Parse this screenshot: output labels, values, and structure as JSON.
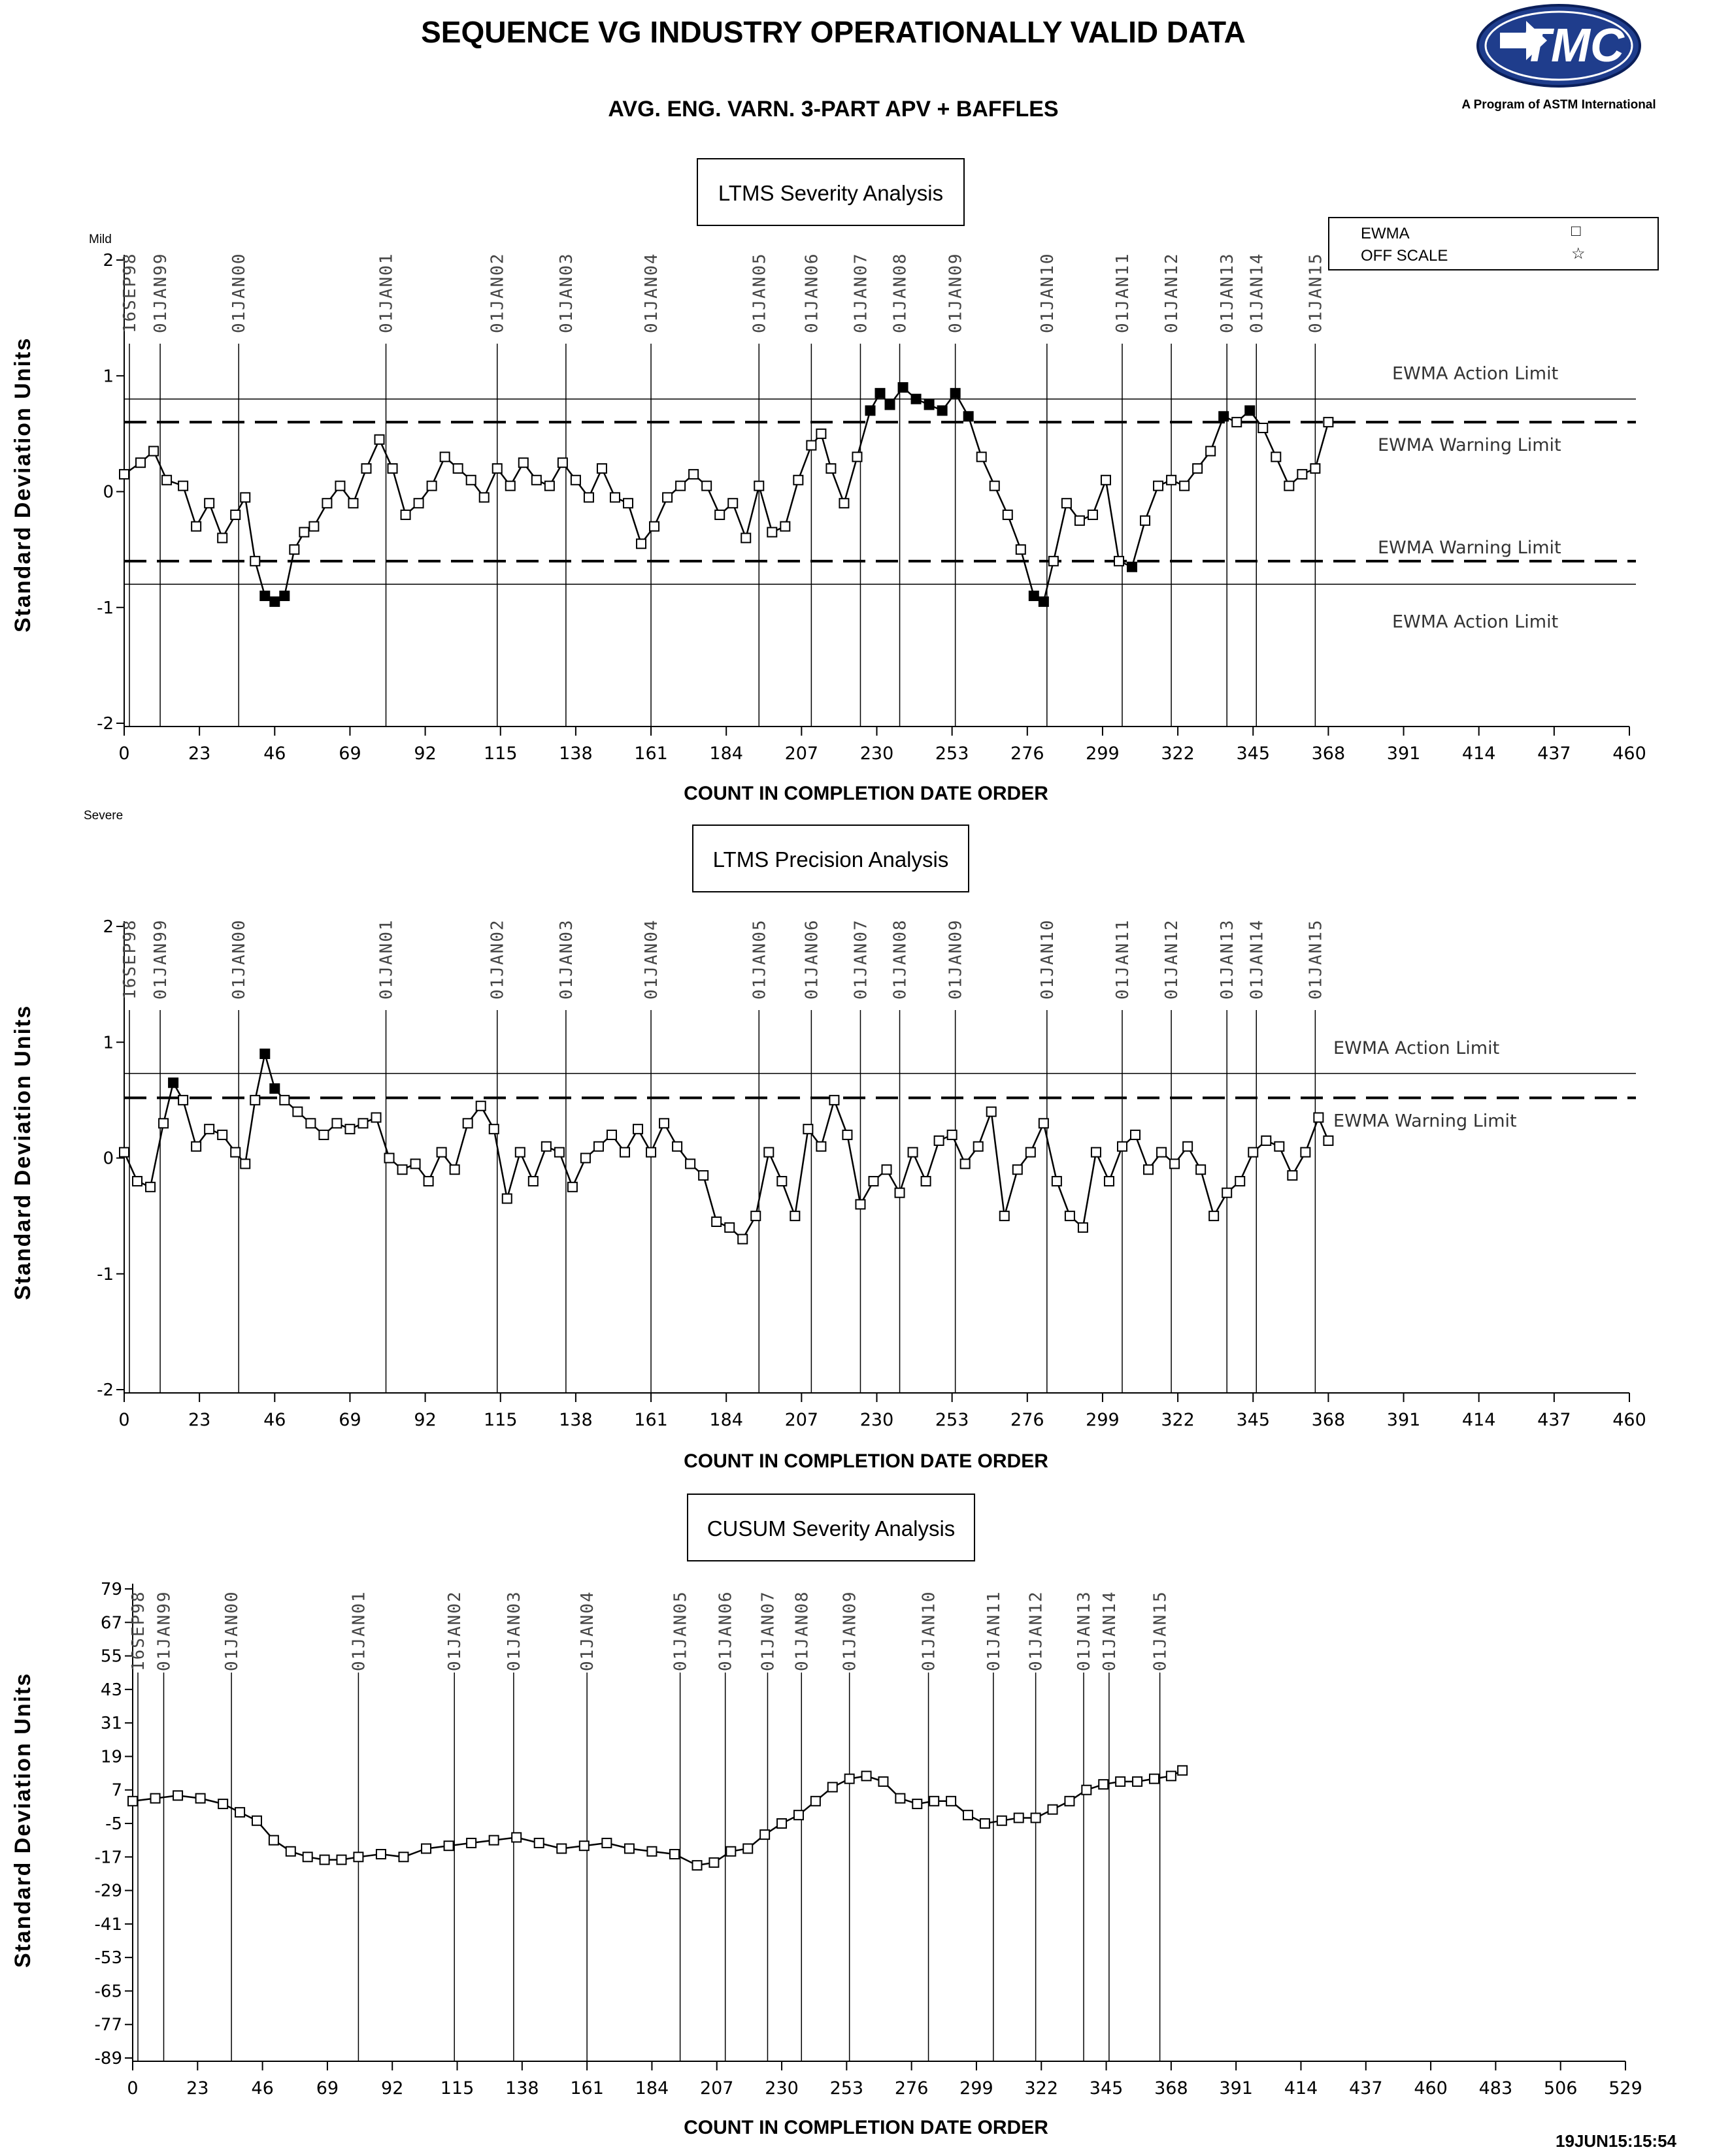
{
  "header": {
    "title": "SEQUENCE VG INDUSTRY OPERATIONALLY VALID DATA",
    "subtitle": "AVG. ENG. VARN. 3-PART APV + BAFFLES",
    "logo_text": "TMC",
    "logo_caption": "A Program of ASTM International"
  },
  "legend": {
    "ewma_label": "EWMA",
    "offscale_label": "OFF SCALE",
    "ewma_symbol": "□",
    "offscale_symbol": "☆"
  },
  "labels": {
    "mild": "Mild",
    "severe": "Severe",
    "timestamp": "19JUN15:15:54"
  },
  "chart_data": [
    {
      "type": "line",
      "title": "LTMS Severity Analysis",
      "xlabel": "COUNT IN COMPLETION DATE ORDER",
      "ylabel": "Standard Deviation Units",
      "xlim": [
        0,
        460
      ],
      "ylim": [
        -2,
        2
      ],
      "xticks": [
        0,
        23,
        46,
        69,
        92,
        115,
        138,
        161,
        184,
        207,
        230,
        253,
        276,
        299,
        322,
        345,
        368,
        391,
        414,
        437,
        460
      ],
      "yticks": [
        -2,
        -1,
        0,
        1,
        2
      ],
      "date_markers": [
        {
          "label": "16SEP98",
          "x": 0
        },
        {
          "label": "01JAN99",
          "x": 11
        },
        {
          "label": "01JAN00",
          "x": 35
        },
        {
          "label": "01JAN01",
          "x": 80
        },
        {
          "label": "01JAN02",
          "x": 114
        },
        {
          "label": "01JAN03",
          "x": 135
        },
        {
          "label": "01JAN04",
          "x": 161
        },
        {
          "label": "01JAN05",
          "x": 194
        },
        {
          "label": "01JAN06",
          "x": 210
        },
        {
          "label": "01JAN07",
          "x": 225
        },
        {
          "label": "01JAN08",
          "x": 237
        },
        {
          "label": "01JAN09",
          "x": 254
        },
        {
          "label": "01JAN10",
          "x": 282
        },
        {
          "label": "01JAN11",
          "x": 305
        },
        {
          "label": "01JAN12",
          "x": 320
        },
        {
          "label": "01JAN13",
          "x": 337
        },
        {
          "label": "01JAN14",
          "x": 346
        },
        {
          "label": "01JAN15",
          "x": 364
        }
      ],
      "limits": [
        {
          "label": "EWMA Action Limit",
          "value": 0.8,
          "style": "solid"
        },
        {
          "label": "EWMA Warning Limit",
          "value": 0.6,
          "style": "dashed"
        },
        {
          "label": "EWMA Warning Limit",
          "value": -0.6,
          "style": "dashed"
        },
        {
          "label": "EWMA Action Limit",
          "value": -0.8,
          "style": "solid"
        }
      ],
      "series": [
        {
          "x": [
            0,
            5,
            9,
            13,
            18,
            22,
            26,
            30,
            34,
            37,
            40,
            43,
            46,
            49,
            52,
            55,
            58,
            62,
            66,
            70,
            74,
            78,
            82,
            86,
            90,
            94,
            98,
            102,
            106,
            110,
            114,
            118,
            122,
            126,
            130,
            134,
            138,
            142,
            146,
            150,
            154,
            158,
            162,
            166,
            170,
            174,
            178,
            182,
            186,
            190,
            194,
            198,
            202,
            206,
            210,
            213,
            216,
            220,
            224,
            228,
            231,
            234,
            238,
            242,
            246,
            250,
            254,
            258,
            262,
            266,
            270,
            274,
            278,
            281,
            284,
            288,
            292,
            296,
            300,
            304,
            308,
            312,
            316,
            320,
            324,
            328,
            332,
            336,
            340,
            344,
            348,
            352,
            356,
            360,
            364,
            368
          ],
          "y": [
            0.15,
            0.25,
            0.35,
            0.1,
            0.05,
            -0.3,
            -0.1,
            -0.4,
            -0.2,
            -0.05,
            -0.6,
            -0.9,
            -0.95,
            -0.9,
            -0.5,
            -0.35,
            -0.3,
            -0.1,
            0.05,
            -0.1,
            0.2,
            0.45,
            0.2,
            -0.2,
            -0.1,
            0.05,
            0.3,
            0.2,
            0.1,
            -0.05,
            0.2,
            0.05,
            0.25,
            0.1,
            0.05,
            0.25,
            0.1,
            -0.05,
            0.2,
            -0.05,
            -0.1,
            -0.45,
            -0.3,
            -0.05,
            0.05,
            0.15,
            0.05,
            -0.2,
            -0.1,
            -0.4,
            0.05,
            -0.35,
            -0.3,
            0.1,
            0.4,
            0.5,
            0.2,
            -0.1,
            0.3,
            0.7,
            0.85,
            0.75,
            0.9,
            0.8,
            0.75,
            0.7,
            0.85,
            0.65,
            0.3,
            0.05,
            -0.2,
            -0.5,
            -0.9,
            -0.95,
            -0.6,
            -0.1,
            -0.25,
            -0.2,
            0.1,
            -0.6,
            -0.65,
            -0.25,
            0.05,
            0.1,
            0.05,
            0.2,
            0.35,
            0.65,
            0.6,
            0.7,
            0.55,
            0.3,
            0.05,
            0.15,
            0.2,
            0.6
          ]
        }
      ]
    },
    {
      "type": "line",
      "title": "LTMS Precision Analysis",
      "xlabel": "COUNT IN COMPLETION DATE ORDER",
      "ylabel": "Standard Deviation Units",
      "xlim": [
        0,
        460
      ],
      "ylim": [
        -2,
        2
      ],
      "xticks": [
        0,
        23,
        46,
        69,
        92,
        115,
        138,
        161,
        184,
        207,
        230,
        253,
        276,
        299,
        322,
        345,
        368,
        391,
        414,
        437,
        460
      ],
      "yticks": [
        -2,
        -1,
        0,
        1,
        2
      ],
      "date_markers": [
        {
          "label": "16SEP98",
          "x": 0
        },
        {
          "label": "01JAN99",
          "x": 11
        },
        {
          "label": "01JAN00",
          "x": 35
        },
        {
          "label": "01JAN01",
          "x": 80
        },
        {
          "label": "01JAN02",
          "x": 114
        },
        {
          "label": "01JAN03",
          "x": 135
        },
        {
          "label": "01JAN04",
          "x": 161
        },
        {
          "label": "01JAN05",
          "x": 194
        },
        {
          "label": "01JAN06",
          "x": 210
        },
        {
          "label": "01JAN07",
          "x": 225
        },
        {
          "label": "01JAN08",
          "x": 237
        },
        {
          "label": "01JAN09",
          "x": 254
        },
        {
          "label": "01JAN10",
          "x": 282
        },
        {
          "label": "01JAN11",
          "x": 305
        },
        {
          "label": "01JAN12",
          "x": 320
        },
        {
          "label": "01JAN13",
          "x": 337
        },
        {
          "label": "01JAN14",
          "x": 346
        },
        {
          "label": "01JAN15",
          "x": 364
        }
      ],
      "limits": [
        {
          "label": "EWMA Action Limit",
          "value": 0.73,
          "style": "solid"
        },
        {
          "label": "EWMA Warning Limit",
          "value": 0.52,
          "style": "dashed"
        }
      ],
      "series": [
        {
          "x": [
            0,
            4,
            8,
            12,
            15,
            18,
            22,
            26,
            30,
            34,
            37,
            40,
            43,
            46,
            49,
            53,
            57,
            61,
            65,
            69,
            73,
            77,
            81,
            85,
            89,
            93,
            97,
            101,
            105,
            109,
            113,
            117,
            121,
            125,
            129,
            133,
            137,
            141,
            145,
            149,
            153,
            157,
            161,
            165,
            169,
            173,
            177,
            181,
            185,
            189,
            193,
            197,
            201,
            205,
            209,
            213,
            217,
            221,
            225,
            229,
            233,
            237,
            241,
            245,
            249,
            253,
            257,
            261,
            265,
            269,
            273,
            277,
            281,
            285,
            289,
            293,
            297,
            301,
            305,
            309,
            313,
            317,
            321,
            325,
            329,
            333,
            337,
            341,
            345,
            349,
            353,
            357,
            361,
            365,
            368
          ],
          "y": [
            0.05,
            -0.2,
            -0.25,
            0.3,
            0.65,
            0.5,
            0.1,
            0.25,
            0.2,
            0.05,
            -0.05,
            0.5,
            0.9,
            0.6,
            0.5,
            0.4,
            0.3,
            0.2,
            0.3,
            0.25,
            0.3,
            0.35,
            0.0,
            -0.1,
            -0.05,
            -0.2,
            0.05,
            -0.1,
            0.3,
            0.45,
            0.25,
            -0.35,
            0.05,
            -0.2,
            0.1,
            0.05,
            -0.25,
            0.0,
            0.1,
            0.2,
            0.05,
            0.25,
            0.05,
            0.3,
            0.1,
            -0.05,
            -0.15,
            -0.55,
            -0.6,
            -0.7,
            -0.5,
            0.05,
            -0.2,
            -0.5,
            0.25,
            0.1,
            0.5,
            0.2,
            -0.4,
            -0.2,
            -0.1,
            -0.3,
            0.05,
            -0.2,
            0.15,
            0.2,
            -0.05,
            0.1,
            0.4,
            -0.5,
            -0.1,
            0.05,
            0.3,
            -0.2,
            -0.5,
            -0.6,
            0.05,
            -0.2,
            0.1,
            0.2,
            -0.1,
            0.05,
            -0.05,
            0.1,
            -0.1,
            -0.5,
            -0.3,
            -0.2,
            0.05,
            0.15,
            0.1,
            -0.15,
            0.05,
            0.35,
            0.15
          ]
        }
      ]
    },
    {
      "type": "line",
      "title": "CUSUM Severity Analysis",
      "xlabel": "COUNT IN COMPLETION DATE ORDER",
      "ylabel": "Standard Deviation Units",
      "xlim": [
        0,
        529
      ],
      "ylim": [
        -89,
        79
      ],
      "xticks": [
        0,
        23,
        46,
        69,
        92,
        115,
        138,
        161,
        184,
        207,
        230,
        253,
        276,
        299,
        322,
        345,
        368,
        391,
        414,
        437,
        460,
        483,
        506,
        529
      ],
      "yticks": [
        -89,
        -77,
        -65,
        -53,
        -41,
        -29,
        -17,
        -5,
        7,
        19,
        31,
        43,
        55,
        67,
        79
      ],
      "date_markers": [
        {
          "label": "16SEP98",
          "x": 0
        },
        {
          "label": "01JAN99",
          "x": 11
        },
        {
          "label": "01JAN00",
          "x": 35
        },
        {
          "label": "01JAN01",
          "x": 80
        },
        {
          "label": "01JAN02",
          "x": 114
        },
        {
          "label": "01JAN03",
          "x": 135
        },
        {
          "label": "01JAN04",
          "x": 161
        },
        {
          "label": "01JAN05",
          "x": 194
        },
        {
          "label": "01JAN06",
          "x": 210
        },
        {
          "label": "01JAN07",
          "x": 225
        },
        {
          "label": "01JAN08",
          "x": 237
        },
        {
          "label": "01JAN09",
          "x": 254
        },
        {
          "label": "01JAN10",
          "x": 282
        },
        {
          "label": "01JAN11",
          "x": 305
        },
        {
          "label": "01JAN12",
          "x": 320
        },
        {
          "label": "01JAN13",
          "x": 337
        },
        {
          "label": "01JAN14",
          "x": 346
        },
        {
          "label": "01JAN15",
          "x": 364
        }
      ],
      "series": [
        {
          "x": [
            0,
            8,
            16,
            24,
            32,
            38,
            44,
            50,
            56,
            62,
            68,
            74,
            80,
            88,
            96,
            104,
            112,
            120,
            128,
            136,
            144,
            152,
            160,
            168,
            176,
            184,
            192,
            200,
            206,
            212,
            218,
            224,
            230,
            236,
            242,
            248,
            254,
            260,
            266,
            272,
            278,
            284,
            290,
            296,
            302,
            308,
            314,
            320,
            326,
            332,
            338,
            344,
            350,
            356,
            362,
            368,
            372
          ],
          "y": [
            3,
            4,
            5,
            4,
            2,
            -1,
            -4,
            -11,
            -15,
            -17,
            -18,
            -18,
            -17,
            -16,
            -17,
            -14,
            -13,
            -12,
            -11,
            -10,
            -12,
            -14,
            -13,
            -12,
            -14,
            -15,
            -16,
            -20,
            -19,
            -15,
            -14,
            -9,
            -5,
            -2,
            3,
            8,
            11,
            12,
            10,
            4,
            2,
            3,
            3,
            -2,
            -5,
            -4,
            -3,
            -3,
            0,
            3,
            7,
            9,
            10,
            10,
            11,
            12,
            14
          ]
        }
      ]
    }
  ]
}
